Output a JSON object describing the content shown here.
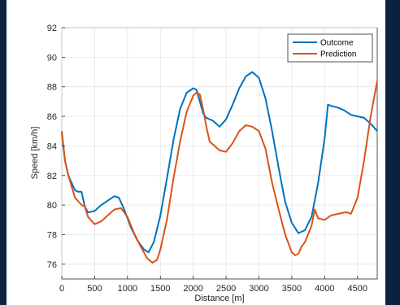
{
  "background_color": "#0a2140",
  "chart_data": {
    "type": "line",
    "title": "",
    "xlabel": "Distance [m]",
    "ylabel": "Speed [km/h]",
    "xlim": [
      0,
      4800
    ],
    "ylim": [
      75,
      92
    ],
    "xticks": [
      0,
      500,
      1000,
      1500,
      2000,
      2500,
      3000,
      3500,
      4000,
      4500
    ],
    "yticks": [
      76,
      78,
      80,
      82,
      84,
      86,
      88,
      90,
      92
    ],
    "grid": true,
    "legend": "top-right",
    "series": [
      {
        "name": "Outcome",
        "color": "#0072BD",
        "x": [
          0,
          50,
          100,
          200,
          250,
          300,
          350,
          400,
          500,
          600,
          700,
          800,
          870,
          950,
          1050,
          1150,
          1250,
          1320,
          1400,
          1500,
          1600,
          1700,
          1800,
          1900,
          2000,
          2050,
          2100,
          2150,
          2200,
          2250,
          2300,
          2350,
          2400,
          2500,
          2600,
          2700,
          2800,
          2900,
          3000,
          3100,
          3200,
          3300,
          3400,
          3500,
          3600,
          3700,
          3800,
          3900,
          4000,
          4050,
          4100,
          4200,
          4300,
          4400,
          4500,
          4600,
          4700,
          4800
        ],
        "y": [
          84.9,
          83.0,
          82.0,
          81.0,
          80.9,
          80.9,
          79.9,
          79.5,
          79.6,
          80.0,
          80.3,
          80.6,
          80.5,
          79.7,
          78.5,
          77.6,
          77.0,
          76.8,
          77.5,
          79.3,
          81.8,
          84.4,
          86.5,
          87.6,
          87.9,
          87.8,
          87.0,
          86.2,
          85.9,
          85.8,
          85.7,
          85.5,
          85.3,
          85.8,
          86.8,
          87.9,
          88.7,
          89.0,
          88.6,
          87.2,
          85.0,
          82.5,
          80.2,
          78.8,
          78.1,
          78.3,
          79.2,
          81.5,
          84.5,
          86.8,
          86.7,
          86.6,
          86.4,
          86.1,
          86.0,
          85.9,
          85.5,
          85.0
        ]
      },
      {
        "name": "Prediction",
        "color": "#D95319",
        "x": [
          0,
          50,
          100,
          200,
          300,
          350,
          400,
          500,
          600,
          700,
          800,
          900,
          1000,
          1100,
          1200,
          1300,
          1380,
          1450,
          1500,
          1600,
          1700,
          1800,
          1900,
          2000,
          2050,
          2100,
          2150,
          2200,
          2250,
          2300,
          2400,
          2500,
          2600,
          2700,
          2800,
          2900,
          3000,
          3100,
          3200,
          3300,
          3400,
          3500,
          3550,
          3600,
          3650,
          3700,
          3800,
          3850,
          3900,
          4000,
          4100,
          4200,
          4300,
          4350,
          4400,
          4500,
          4600,
          4700,
          4800
        ],
        "y": [
          85.0,
          83.0,
          82.0,
          80.5,
          80.0,
          79.9,
          79.2,
          78.7,
          78.9,
          79.3,
          79.7,
          79.8,
          79.2,
          78.1,
          77.2,
          76.4,
          76.1,
          76.3,
          77.0,
          79.0,
          81.8,
          84.3,
          86.3,
          87.4,
          87.6,
          87.5,
          86.5,
          85.3,
          84.3,
          84.1,
          83.7,
          83.6,
          84.2,
          85.0,
          85.4,
          85.3,
          85.0,
          83.8,
          81.5,
          79.7,
          78.0,
          76.8,
          76.6,
          76.7,
          77.2,
          77.5,
          78.6,
          79.7,
          79.1,
          79.0,
          79.3,
          79.4,
          79.5,
          79.5,
          79.4,
          80.5,
          83.0,
          86.0,
          88.4
        ]
      }
    ]
  }
}
